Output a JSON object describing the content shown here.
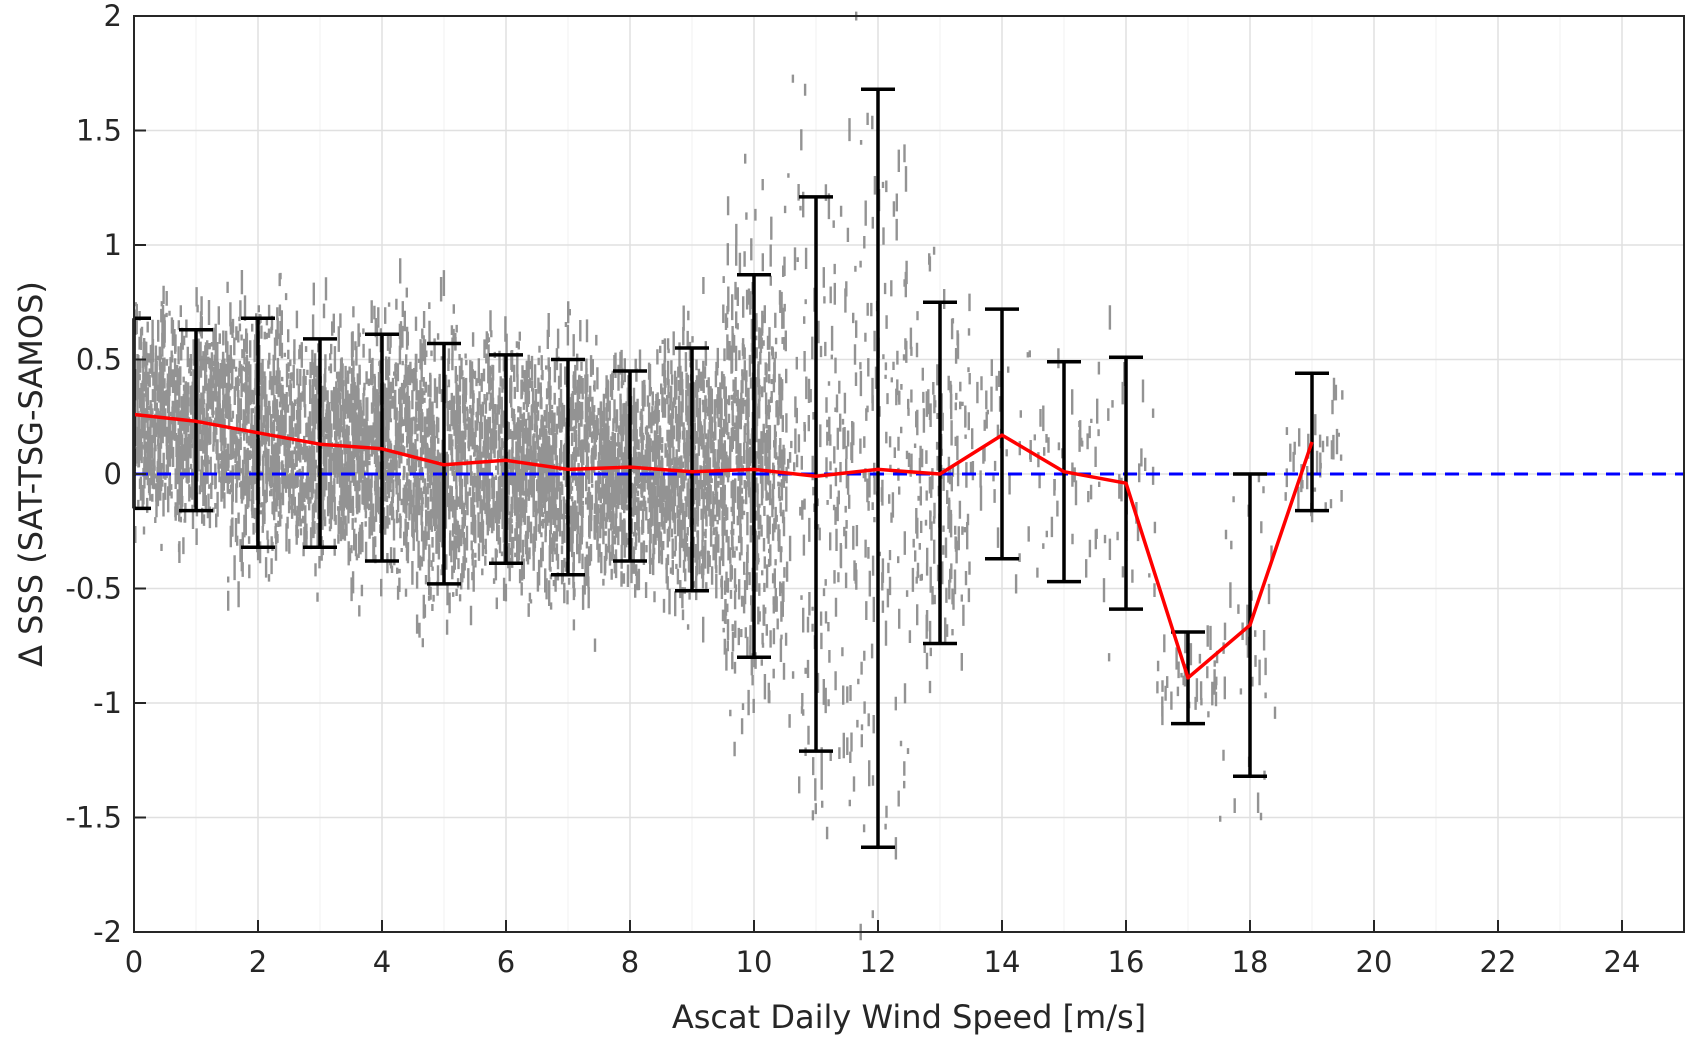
{
  "chart_data": {
    "type": "scatter",
    "title": "",
    "xlabel": "Ascat Daily Wind Speed [m/s]",
    "ylabel": "Δ SSS (SAT-TSG-SAMOS)",
    "xlim": [
      0,
      25
    ],
    "ylim": [
      -2,
      2
    ],
    "x_ticks": [
      "0",
      "2",
      "4",
      "6",
      "8",
      "10",
      "12",
      "14",
      "16",
      "18",
      "20",
      "22",
      "24"
    ],
    "y_ticks": [
      "2",
      "1.5",
      "1",
      "0.5",
      "0",
      "-0.5",
      "-1",
      "-1.5",
      "-2"
    ],
    "grid": true,
    "reference_line": {
      "y": 0,
      "style": "dashed",
      "color": "#0000ff"
    },
    "series": [
      {
        "kind": "scatter-cloud",
        "color": "#808080",
        "point_spread": [
          {
            "x": 0,
            "mean": 0.26,
            "sd": 0.42
          },
          {
            "x": 1,
            "mean": 0.23,
            "sd": 0.4
          },
          {
            "x": 2,
            "mean": 0.18,
            "sd": 0.5
          },
          {
            "x": 3,
            "mean": 0.13,
            "sd": 0.46
          },
          {
            "x": 4,
            "mean": 0.11,
            "sd": 0.5
          },
          {
            "x": 5,
            "mean": 0.04,
            "sd": 0.52
          },
          {
            "x": 6,
            "mean": 0.06,
            "sd": 0.46
          },
          {
            "x": 7,
            "mean": 0.02,
            "sd": 0.47
          },
          {
            "x": 8,
            "mean": 0.03,
            "sd": 0.42
          },
          {
            "x": 9,
            "mean": 0.01,
            "sd": 0.53
          },
          {
            "x": 10,
            "mean": 0.02,
            "sd": 0.84
          },
          {
            "x": 11,
            "mean": -0.01,
            "sd": 1.21
          },
          {
            "x": 12,
            "mean": 0.02,
            "sd": 1.65
          },
          {
            "x": 13,
            "mean": 0.0,
            "sd": 0.75
          },
          {
            "x": 14,
            "mean": 0.17,
            "sd": 0.55
          },
          {
            "x": 15,
            "mean": 0.01,
            "sd": 0.48
          },
          {
            "x": 16,
            "mean": -0.04,
            "sd": 0.55
          },
          {
            "x": 17,
            "mean": -0.89,
            "sd": 0.2
          },
          {
            "x": 18,
            "mean": -0.66,
            "sd": 0.66
          },
          {
            "x": 19,
            "mean": 0.14,
            "sd": 0.3
          }
        ]
      },
      {
        "kind": "mean-line",
        "color": "#ff0000",
        "x": [
          0,
          1,
          2,
          3,
          4,
          5,
          6,
          7,
          8,
          9,
          10,
          11,
          12,
          13,
          14,
          15,
          16,
          17,
          18,
          19
        ],
        "values": [
          0.26,
          0.23,
          0.18,
          0.13,
          0.11,
          0.04,
          0.06,
          0.02,
          0.03,
          0.01,
          0.02,
          -0.01,
          0.02,
          0.0,
          0.17,
          0.01,
          -0.04,
          -0.89,
          -0.66,
          0.14
        ]
      },
      {
        "kind": "error-bars",
        "color": "#000000",
        "x": [
          0,
          1,
          2,
          3,
          4,
          5,
          6,
          7,
          8,
          9,
          10,
          11,
          12,
          13,
          14,
          15,
          16,
          17,
          18,
          19
        ],
        "upper": [
          0.68,
          0.63,
          0.68,
          0.59,
          0.61,
          0.57,
          0.52,
          0.5,
          0.45,
          0.55,
          0.87,
          1.21,
          1.68,
          0.75,
          0.72,
          0.49,
          0.51,
          -0.69,
          0.0,
          0.44
        ],
        "lower": [
          -0.15,
          -0.16,
          -0.32,
          -0.32,
          -0.38,
          -0.48,
          -0.39,
          -0.44,
          -0.38,
          -0.51,
          -0.8,
          -1.21,
          -1.63,
          -0.74,
          -0.37,
          -0.47,
          -0.59,
          -1.09,
          -1.32,
          -0.16
        ]
      }
    ]
  }
}
